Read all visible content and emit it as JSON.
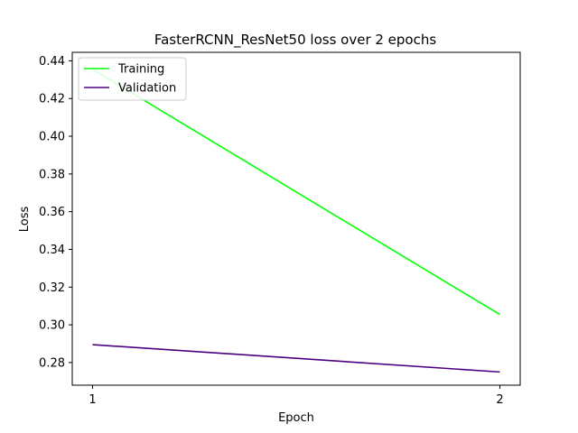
{
  "chart_data": {
    "type": "line",
    "title": "FasterRCNN_ResNet50 loss over 2 epochs",
    "xlabel": "Epoch",
    "ylabel": "Loss",
    "x": [
      1,
      2
    ],
    "xticks": [
      "1",
      "2"
    ],
    "xlim": [
      0.95,
      2.05
    ],
    "ylim": [
      0.268,
      0.4445
    ],
    "yticks": [
      "0.28",
      "0.30",
      "0.32",
      "0.34",
      "0.36",
      "0.38",
      "0.40",
      "0.42",
      "0.44"
    ],
    "grid": false,
    "legend_position": "top-left",
    "series": [
      {
        "name": "Training",
        "values": [
          0.4355,
          0.3055
        ],
        "color": "#00ff00"
      },
      {
        "name": "Validation",
        "values": [
          0.2895,
          0.275
        ],
        "color": "#4b0082"
      }
    ]
  }
}
